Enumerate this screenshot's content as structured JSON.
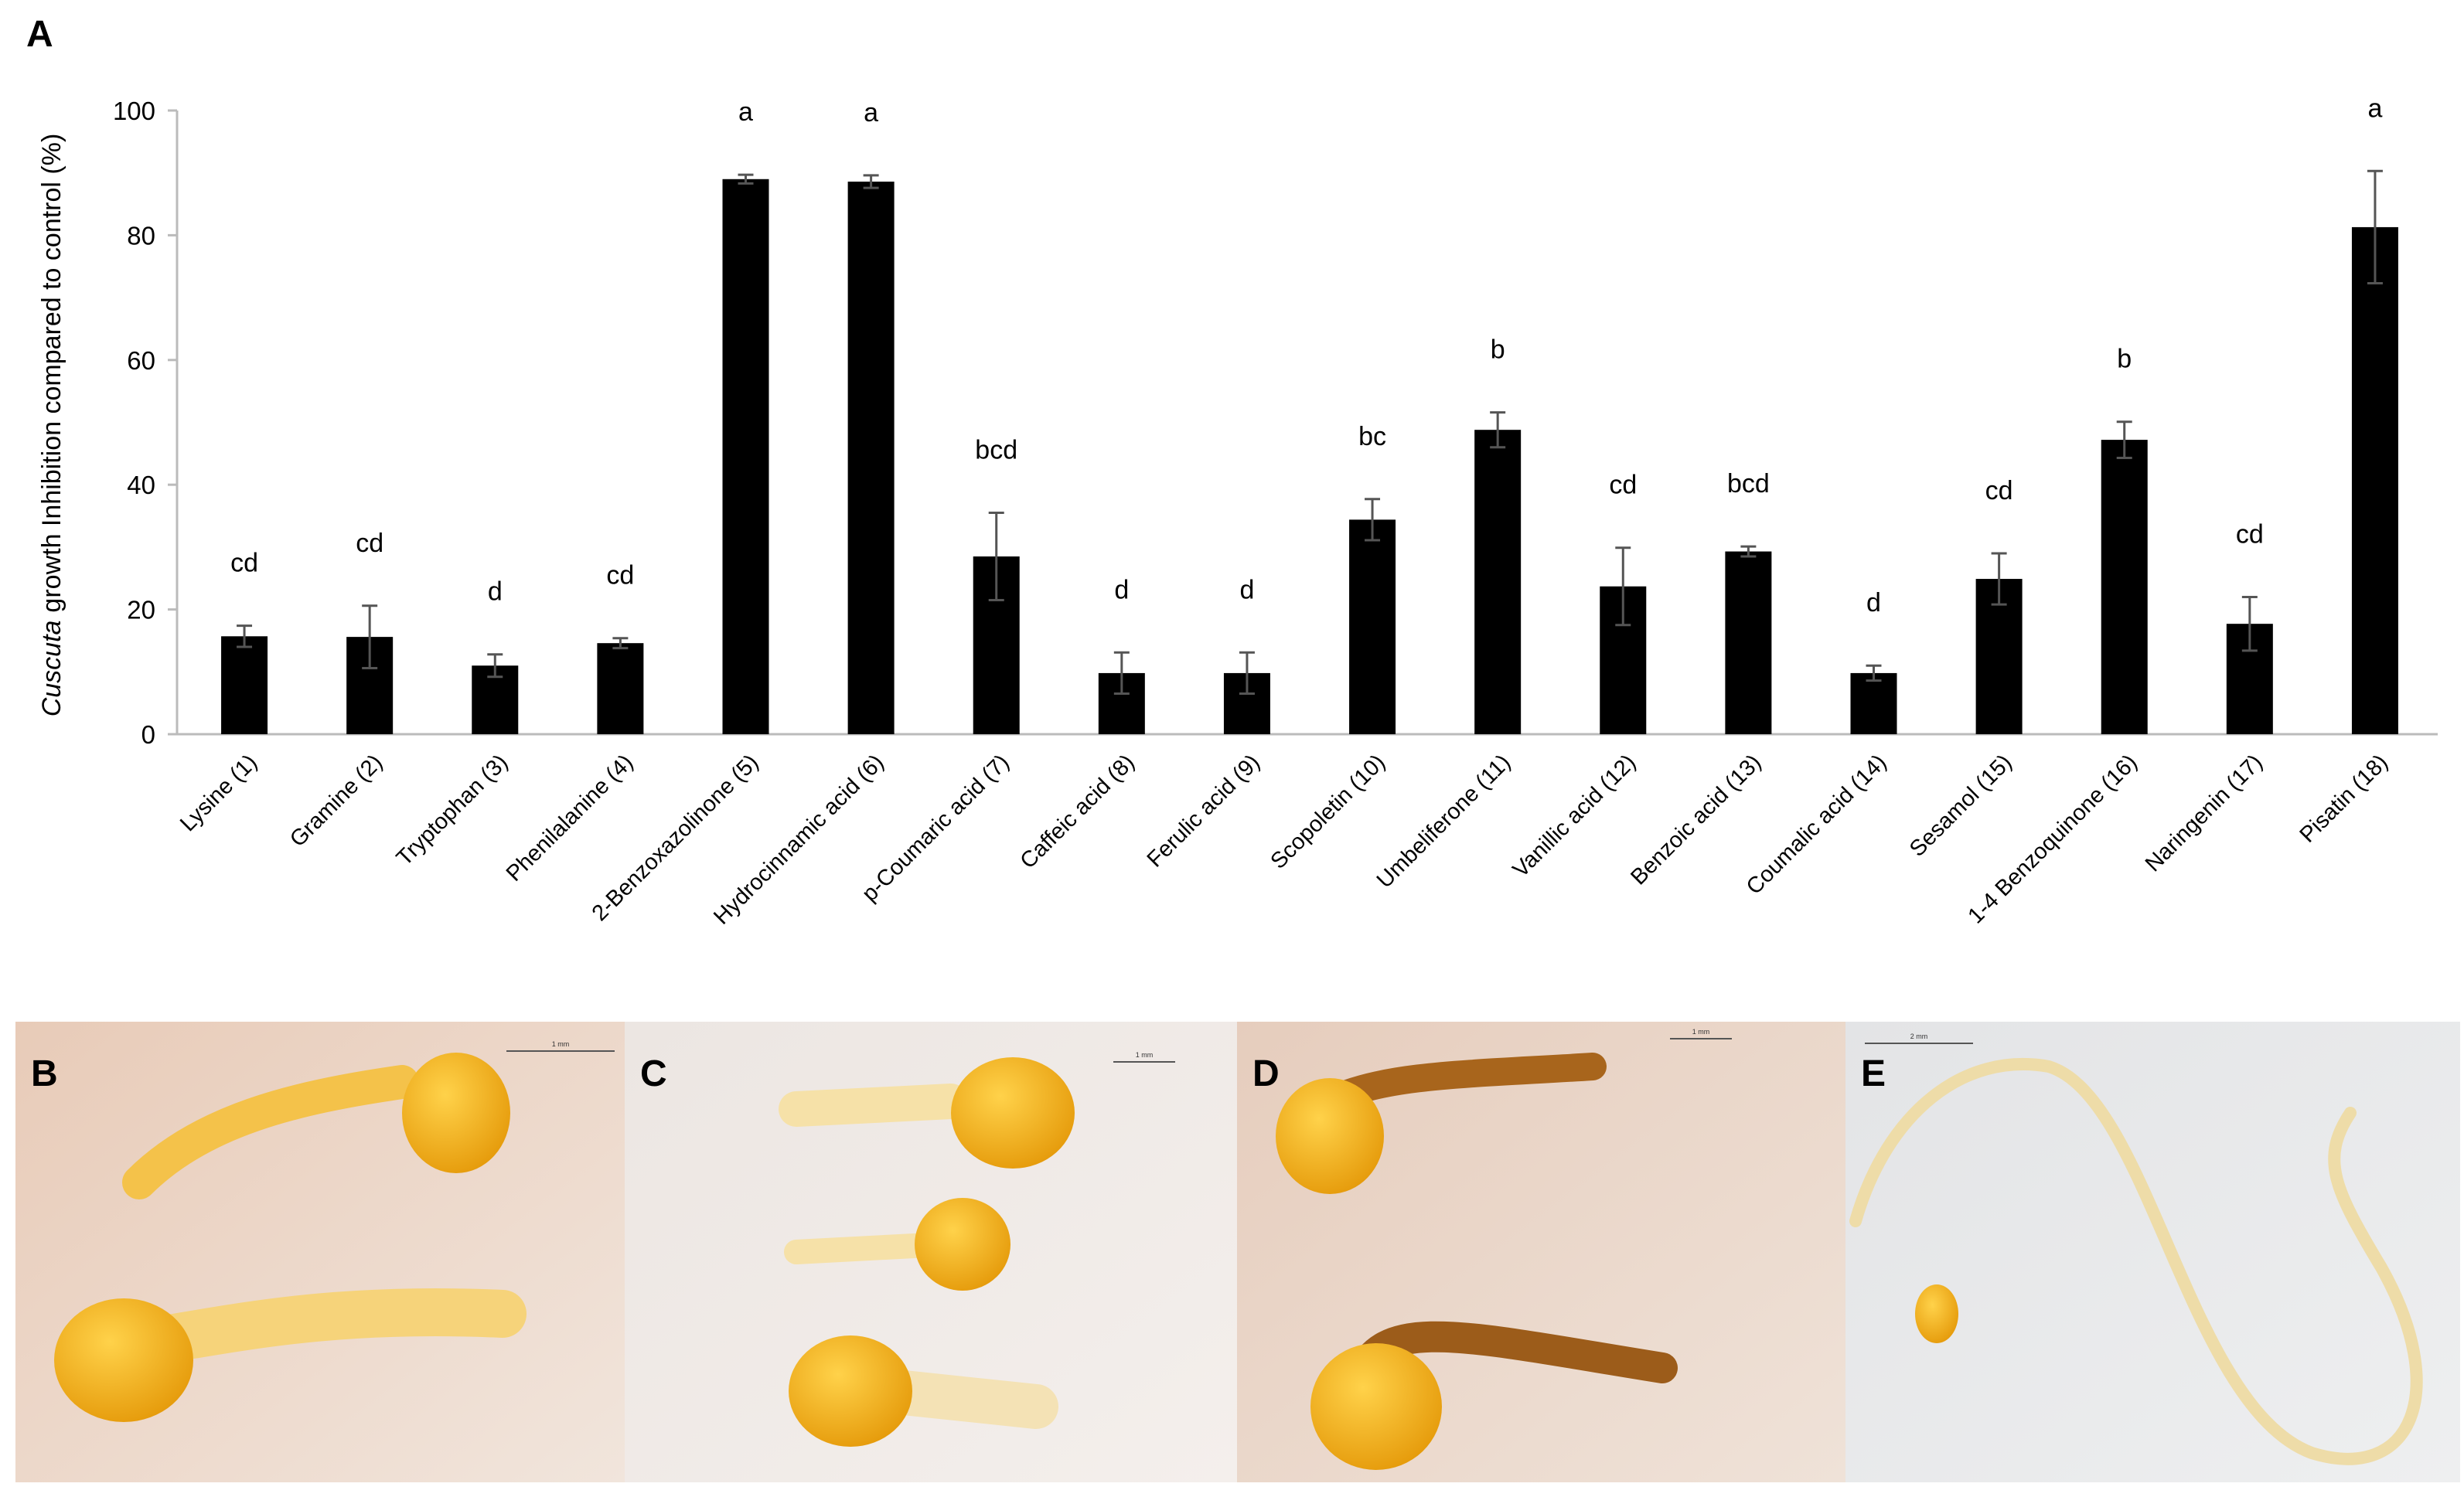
{
  "chart_data": {
    "type": "bar",
    "panel_label": "A",
    "ylabel_species": "Cuscuta",
    "ylabel": "growth Inhibition compared to control (%)",
    "categories": [
      "Lysine (1)",
      "Gramine (2)",
      "Tryptophan (3)",
      "Phenilalanine (4)",
      "2-Benzoxazolinone (5)",
      "Hydrocinnamic acid (6)",
      "p-Coumaric acid (7)",
      "Caffeic acid (8)",
      "Ferulic acid (9)",
      "Scopoletin (10)",
      "Umbeliferone (11)",
      "Vanillic acid (12)",
      "Benzoic acid (13)",
      "Coumalic acid (14)",
      "Sesamol (15)",
      "1-4 Benzoquinone (16)",
      "Naringenin (17)",
      "Pisatin (18)"
    ],
    "values": [
      15.7,
      15.6,
      11,
      14.6,
      89,
      88.6,
      28.5,
      9.8,
      9.8,
      34.4,
      48.8,
      23.7,
      29.3,
      9.8,
      24.9,
      47.2,
      17.7,
      81.3
    ],
    "errors": [
      1.7,
      5,
      1.8,
      0.8,
      0.7,
      1,
      7,
      3.3,
      3.3,
      3.3,
      2.8,
      6.2,
      0.8,
      1.2,
      4.1,
      2.9,
      4.3,
      9
    ],
    "annotations": [
      "cd",
      "cd",
      "d",
      "cd",
      "a",
      "a",
      "bcd",
      "d",
      "d",
      "bc",
      "b",
      "cd",
      "bcd",
      "d",
      "cd",
      "b",
      "cd",
      "a"
    ],
    "color": "#000000",
    "error_color": "#555555",
    "ylim": [
      0,
      100
    ],
    "yticks": [
      0,
      20,
      40,
      60,
      80,
      100
    ],
    "grid": false
  },
  "photos": [
    {
      "label": "B",
      "scale_bar": "1 mm"
    },
    {
      "label": "C",
      "scale_bar": "1 mm"
    },
    {
      "label": "D",
      "scale_bar": "1 mm"
    },
    {
      "label": "E",
      "scale_bar": "2 mm"
    }
  ]
}
